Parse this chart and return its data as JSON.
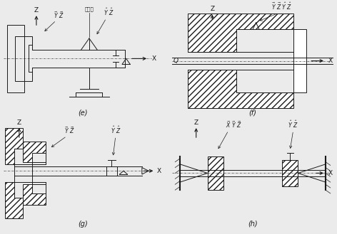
{
  "bg_color": "#ebebeb",
  "line_color": "#1a1a1a",
  "fig_width": 4.72,
  "fig_height": 3.29,
  "dpi": 100,
  "subplots": {
    "e": {
      "label": "(e)",
      "zhongxin": "中心架"
    },
    "f": {
      "label": "(f)",
      "Q": "Q"
    },
    "g": {
      "label": "(g)"
    },
    "h": {
      "label": "(h)"
    }
  }
}
